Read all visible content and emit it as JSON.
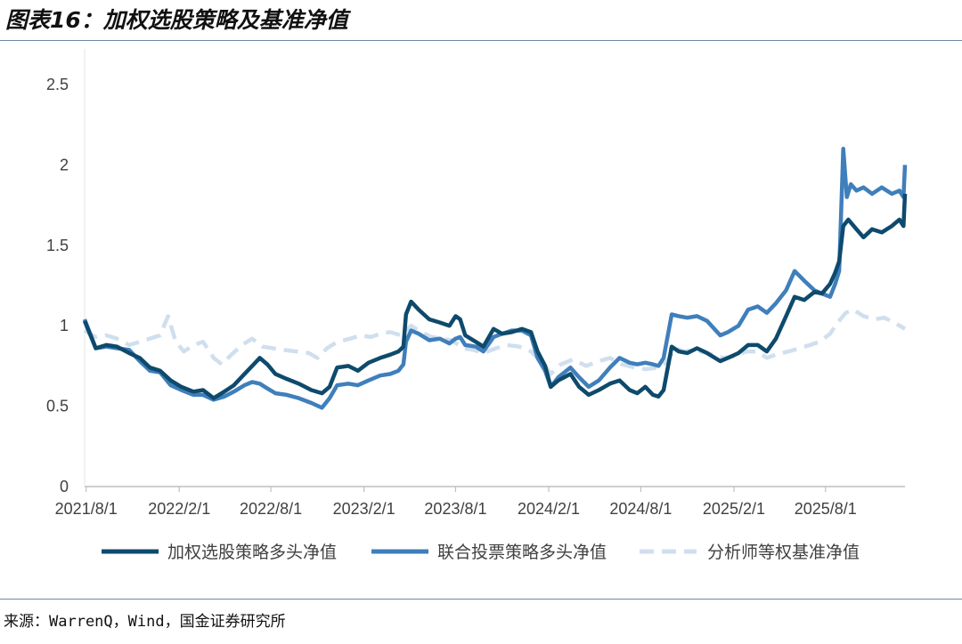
{
  "header": {
    "title": "图表16：加权选股策略及基准净值"
  },
  "footer": {
    "source": "来源：WarrenQ，Wind，国金证券研究所"
  },
  "chart_data": {
    "type": "line",
    "title": "图表16：加权选股策略及基准净值",
    "xlabel": "",
    "ylabel": "",
    "ylim": [
      0,
      2.5
    ],
    "xlim": [
      "2021-07-29",
      "2026-01-05"
    ],
    "yticks": [
      "0",
      "0.5",
      "1",
      "1.5",
      "2",
      "2.5"
    ],
    "xticks": [
      "2021/8/1",
      "2022/2/1",
      "2022/8/1",
      "2023/2/1",
      "2023/8/1",
      "2024/2/1",
      "2024/8/1",
      "2025/2/1",
      "2025/8/1"
    ],
    "grid": false,
    "legend_position": "bottom",
    "series": [
      {
        "name": "加权选股策略多头净值",
        "color": "#0e4a6c",
        "dash": "solid",
        "points": [
          [
            "2021-07-29",
            1.03
          ],
          [
            "2021-08-20",
            0.86
          ],
          [
            "2021-09-10",
            0.88
          ],
          [
            "2021-10-01",
            0.87
          ],
          [
            "2021-10-25",
            0.83
          ],
          [
            "2021-11-15",
            0.8
          ],
          [
            "2021-12-05",
            0.74
          ],
          [
            "2021-12-25",
            0.72
          ],
          [
            "2022-01-15",
            0.66
          ],
          [
            "2022-02-05",
            0.62
          ],
          [
            "2022-03-01",
            0.59
          ],
          [
            "2022-03-20",
            0.6
          ],
          [
            "2022-04-10",
            0.55
          ],
          [
            "2022-05-01",
            0.59
          ],
          [
            "2022-05-20",
            0.63
          ],
          [
            "2022-06-10",
            0.7
          ],
          [
            "2022-06-25",
            0.75
          ],
          [
            "2022-07-10",
            0.8
          ],
          [
            "2022-07-25",
            0.76
          ],
          [
            "2022-08-10",
            0.7
          ],
          [
            "2022-09-01",
            0.67
          ],
          [
            "2022-09-25",
            0.64
          ],
          [
            "2022-10-20",
            0.6
          ],
          [
            "2022-11-10",
            0.58
          ],
          [
            "2022-11-25",
            0.62
          ],
          [
            "2022-12-10",
            0.74
          ],
          [
            "2023-01-01",
            0.75
          ],
          [
            "2023-01-20",
            0.72
          ],
          [
            "2023-02-10",
            0.77
          ],
          [
            "2023-03-05",
            0.8
          ],
          [
            "2023-03-25",
            0.82
          ],
          [
            "2023-04-10",
            0.84
          ],
          [
            "2023-04-20",
            0.87
          ],
          [
            "2023-04-25",
            1.07
          ],
          [
            "2023-05-05",
            1.15
          ],
          [
            "2023-05-20",
            1.1
          ],
          [
            "2023-06-10",
            1.04
          ],
          [
            "2023-07-01",
            1.02
          ],
          [
            "2023-07-20",
            1.0
          ],
          [
            "2023-08-01",
            1.06
          ],
          [
            "2023-08-10",
            1.04
          ],
          [
            "2023-08-20",
            0.94
          ],
          [
            "2023-09-10",
            0.9
          ],
          [
            "2023-09-25",
            0.87
          ],
          [
            "2023-10-15",
            0.98
          ],
          [
            "2023-11-01",
            0.95
          ],
          [
            "2023-11-20",
            0.96
          ],
          [
            "2023-12-10",
            0.98
          ],
          [
            "2023-12-28",
            0.96
          ],
          [
            "2024-01-10",
            0.84
          ],
          [
            "2024-01-25",
            0.75
          ],
          [
            "2024-02-05",
            0.62
          ],
          [
            "2024-02-20",
            0.66
          ],
          [
            "2024-03-15",
            0.7
          ],
          [
            "2024-04-01",
            0.62
          ],
          [
            "2024-04-20",
            0.57
          ],
          [
            "2024-05-10",
            0.6
          ],
          [
            "2024-06-01",
            0.64
          ],
          [
            "2024-06-20",
            0.66
          ],
          [
            "2024-07-10",
            0.6
          ],
          [
            "2024-07-25",
            0.58
          ],
          [
            "2024-08-10",
            0.62
          ],
          [
            "2024-08-25",
            0.57
          ],
          [
            "2024-09-05",
            0.56
          ],
          [
            "2024-09-15",
            0.6
          ],
          [
            "2024-10-01",
            0.87
          ],
          [
            "2024-10-15",
            0.84
          ],
          [
            "2024-11-01",
            0.83
          ],
          [
            "2024-11-20",
            0.86
          ],
          [
            "2024-12-10",
            0.83
          ],
          [
            "2025-01-05",
            0.78
          ],
          [
            "2025-01-20",
            0.8
          ],
          [
            "2025-02-10",
            0.83
          ],
          [
            "2025-03-01",
            0.88
          ],
          [
            "2025-03-20",
            0.88
          ],
          [
            "2025-04-07",
            0.84
          ],
          [
            "2025-04-25",
            0.92
          ],
          [
            "2025-05-15",
            1.06
          ],
          [
            "2025-06-01",
            1.18
          ],
          [
            "2025-06-20",
            1.16
          ],
          [
            "2025-07-10",
            1.21
          ],
          [
            "2025-07-25",
            1.2
          ],
          [
            "2025-08-10",
            1.26
          ],
          [
            "2025-08-20",
            1.33
          ],
          [
            "2025-08-28",
            1.4
          ],
          [
            "2025-09-05",
            1.62
          ],
          [
            "2025-09-15",
            1.66
          ],
          [
            "2025-10-01",
            1.6
          ],
          [
            "2025-10-15",
            1.55
          ],
          [
            "2025-11-01",
            1.6
          ],
          [
            "2025-11-20",
            1.58
          ],
          [
            "2025-12-10",
            1.62
          ],
          [
            "2025-12-25",
            1.66
          ],
          [
            "2026-01-02",
            1.62
          ],
          [
            "2026-01-05",
            1.82
          ]
        ]
      },
      {
        "name": "联合投票策略多头净值",
        "color": "#3f7fbb",
        "dash": "solid",
        "points": [
          [
            "2021-07-29",
            1.04
          ],
          [
            "2021-08-20",
            0.86
          ],
          [
            "2021-09-10",
            0.87
          ],
          [
            "2021-10-01",
            0.86
          ],
          [
            "2021-10-25",
            0.85
          ],
          [
            "2021-11-15",
            0.78
          ],
          [
            "2021-12-05",
            0.72
          ],
          [
            "2021-12-25",
            0.71
          ],
          [
            "2022-01-15",
            0.63
          ],
          [
            "2022-02-05",
            0.6
          ],
          [
            "2022-03-01",
            0.57
          ],
          [
            "2022-03-20",
            0.57
          ],
          [
            "2022-04-10",
            0.54
          ],
          [
            "2022-05-01",
            0.56
          ],
          [
            "2022-05-20",
            0.59
          ],
          [
            "2022-06-10",
            0.63
          ],
          [
            "2022-06-25",
            0.65
          ],
          [
            "2022-07-10",
            0.64
          ],
          [
            "2022-07-25",
            0.61
          ],
          [
            "2022-08-10",
            0.58
          ],
          [
            "2022-09-01",
            0.57
          ],
          [
            "2022-09-25",
            0.55
          ],
          [
            "2022-10-20",
            0.52
          ],
          [
            "2022-11-10",
            0.49
          ],
          [
            "2022-11-25",
            0.55
          ],
          [
            "2022-12-10",
            0.63
          ],
          [
            "2023-01-01",
            0.64
          ],
          [
            "2023-01-20",
            0.63
          ],
          [
            "2023-02-10",
            0.66
          ],
          [
            "2023-03-05",
            0.69
          ],
          [
            "2023-03-25",
            0.7
          ],
          [
            "2023-04-10",
            0.72
          ],
          [
            "2023-04-20",
            0.76
          ],
          [
            "2023-04-25",
            0.9
          ],
          [
            "2023-05-05",
            0.97
          ],
          [
            "2023-05-20",
            0.95
          ],
          [
            "2023-06-10",
            0.91
          ],
          [
            "2023-07-01",
            0.92
          ],
          [
            "2023-07-20",
            0.89
          ],
          [
            "2023-08-01",
            0.92
          ],
          [
            "2023-08-10",
            0.93
          ],
          [
            "2023-08-20",
            0.88
          ],
          [
            "2023-09-10",
            0.87
          ],
          [
            "2023-09-25",
            0.84
          ],
          [
            "2023-10-15",
            0.93
          ],
          [
            "2023-11-01",
            0.95
          ],
          [
            "2023-11-20",
            0.97
          ],
          [
            "2023-12-10",
            0.97
          ],
          [
            "2023-12-28",
            0.94
          ],
          [
            "2024-01-10",
            0.8
          ],
          [
            "2024-01-25",
            0.72
          ],
          [
            "2024-02-05",
            0.62
          ],
          [
            "2024-02-20",
            0.68
          ],
          [
            "2024-03-15",
            0.74
          ],
          [
            "2024-04-01",
            0.68
          ],
          [
            "2024-04-20",
            0.62
          ],
          [
            "2024-05-10",
            0.66
          ],
          [
            "2024-06-01",
            0.74
          ],
          [
            "2024-06-20",
            0.8
          ],
          [
            "2024-07-10",
            0.77
          ],
          [
            "2024-07-25",
            0.76
          ],
          [
            "2024-08-10",
            0.77
          ],
          [
            "2024-08-25",
            0.76
          ],
          [
            "2024-09-05",
            0.75
          ],
          [
            "2024-09-15",
            0.8
          ],
          [
            "2024-10-01",
            1.07
          ],
          [
            "2024-10-15",
            1.06
          ],
          [
            "2024-11-01",
            1.05
          ],
          [
            "2024-11-20",
            1.06
          ],
          [
            "2024-12-10",
            1.03
          ],
          [
            "2025-01-05",
            0.94
          ],
          [
            "2025-01-20",
            0.96
          ],
          [
            "2025-02-10",
            1.0
          ],
          [
            "2025-03-01",
            1.1
          ],
          [
            "2025-03-20",
            1.12
          ],
          [
            "2025-04-07",
            1.08
          ],
          [
            "2025-04-25",
            1.14
          ],
          [
            "2025-05-15",
            1.22
          ],
          [
            "2025-06-01",
            1.34
          ],
          [
            "2025-06-20",
            1.28
          ],
          [
            "2025-07-10",
            1.22
          ],
          [
            "2025-07-25",
            1.2
          ],
          [
            "2025-08-10",
            1.18
          ],
          [
            "2025-08-20",
            1.26
          ],
          [
            "2025-08-28",
            1.34
          ],
          [
            "2025-09-05",
            2.1
          ],
          [
            "2025-09-12",
            1.8
          ],
          [
            "2025-09-20",
            1.88
          ],
          [
            "2025-10-01",
            1.84
          ],
          [
            "2025-10-15",
            1.86
          ],
          [
            "2025-11-01",
            1.82
          ],
          [
            "2025-11-20",
            1.86
          ],
          [
            "2025-12-10",
            1.82
          ],
          [
            "2025-12-25",
            1.84
          ],
          [
            "2026-01-02",
            1.8
          ],
          [
            "2026-01-05",
            2.0
          ]
        ]
      },
      {
        "name": "分析师等权基准净值",
        "color": "#d0dfee",
        "dash": "dashed",
        "points": [
          [
            "2021-07-29",
            0.97
          ],
          [
            "2021-08-20",
            0.93
          ],
          [
            "2021-09-10",
            0.94
          ],
          [
            "2021-10-01",
            0.92
          ],
          [
            "2021-10-25",
            0.88
          ],
          [
            "2021-11-15",
            0.9
          ],
          [
            "2021-12-05",
            0.92
          ],
          [
            "2021-12-25",
            0.94
          ],
          [
            "2022-01-10",
            1.06
          ],
          [
            "2022-01-25",
            0.9
          ],
          [
            "2022-02-10",
            0.84
          ],
          [
            "2022-03-01",
            0.88
          ],
          [
            "2022-03-20",
            0.9
          ],
          [
            "2022-04-10",
            0.8
          ],
          [
            "2022-04-26",
            0.76
          ],
          [
            "2022-05-15",
            0.82
          ],
          [
            "2022-06-05",
            0.88
          ],
          [
            "2022-06-25",
            0.92
          ],
          [
            "2022-07-15",
            0.87
          ],
          [
            "2022-08-05",
            0.86
          ],
          [
            "2022-08-25",
            0.85
          ],
          [
            "2022-09-20",
            0.84
          ],
          [
            "2022-10-15",
            0.83
          ],
          [
            "2022-11-01",
            0.8
          ],
          [
            "2022-11-20",
            0.86
          ],
          [
            "2022-12-10",
            0.9
          ],
          [
            "2023-01-05",
            0.92
          ],
          [
            "2023-01-25",
            0.94
          ],
          [
            "2023-02-15",
            0.93
          ],
          [
            "2023-03-05",
            0.95
          ],
          [
            "2023-03-25",
            0.96
          ],
          [
            "2023-04-15",
            0.94
          ],
          [
            "2023-05-05",
            1.0
          ],
          [
            "2023-05-25",
            0.96
          ],
          [
            "2023-06-15",
            0.93
          ],
          [
            "2023-07-05",
            0.92
          ],
          [
            "2023-07-25",
            0.91
          ],
          [
            "2023-08-15",
            0.86
          ],
          [
            "2023-09-05",
            0.85
          ],
          [
            "2023-09-25",
            0.83
          ],
          [
            "2023-10-20",
            0.86
          ],
          [
            "2023-11-10",
            0.88
          ],
          [
            "2023-12-05",
            0.87
          ],
          [
            "2023-12-28",
            0.84
          ],
          [
            "2024-01-20",
            0.77
          ],
          [
            "2024-02-05",
            0.7
          ],
          [
            "2024-02-25",
            0.76
          ],
          [
            "2024-03-20",
            0.79
          ],
          [
            "2024-04-15",
            0.75
          ],
          [
            "2024-05-10",
            0.78
          ],
          [
            "2024-06-01",
            0.8
          ],
          [
            "2024-06-25",
            0.76
          ],
          [
            "2024-07-20",
            0.74
          ],
          [
            "2024-08-10",
            0.73
          ],
          [
            "2024-09-05",
            0.74
          ],
          [
            "2024-09-20",
            0.77
          ],
          [
            "2024-10-08",
            0.86
          ],
          [
            "2024-10-25",
            0.84
          ],
          [
            "2024-11-15",
            0.85
          ],
          [
            "2024-12-10",
            0.83
          ],
          [
            "2025-01-10",
            0.8
          ],
          [
            "2025-02-01",
            0.81
          ],
          [
            "2025-02-25",
            0.84
          ],
          [
            "2025-03-20",
            0.84
          ],
          [
            "2025-04-07",
            0.8
          ],
          [
            "2025-04-25",
            0.82
          ],
          [
            "2025-05-20",
            0.84
          ],
          [
            "2025-06-10",
            0.86
          ],
          [
            "2025-07-01",
            0.88
          ],
          [
            "2025-07-20",
            0.9
          ],
          [
            "2025-08-10",
            0.95
          ],
          [
            "2025-08-25",
            1.02
          ],
          [
            "2025-09-10",
            1.08
          ],
          [
            "2025-09-25",
            1.1
          ],
          [
            "2025-10-15",
            1.06
          ],
          [
            "2025-11-05",
            1.04
          ],
          [
            "2025-11-25",
            1.05
          ],
          [
            "2025-12-15",
            1.02
          ],
          [
            "2026-01-05",
            0.98
          ]
        ]
      }
    ]
  }
}
